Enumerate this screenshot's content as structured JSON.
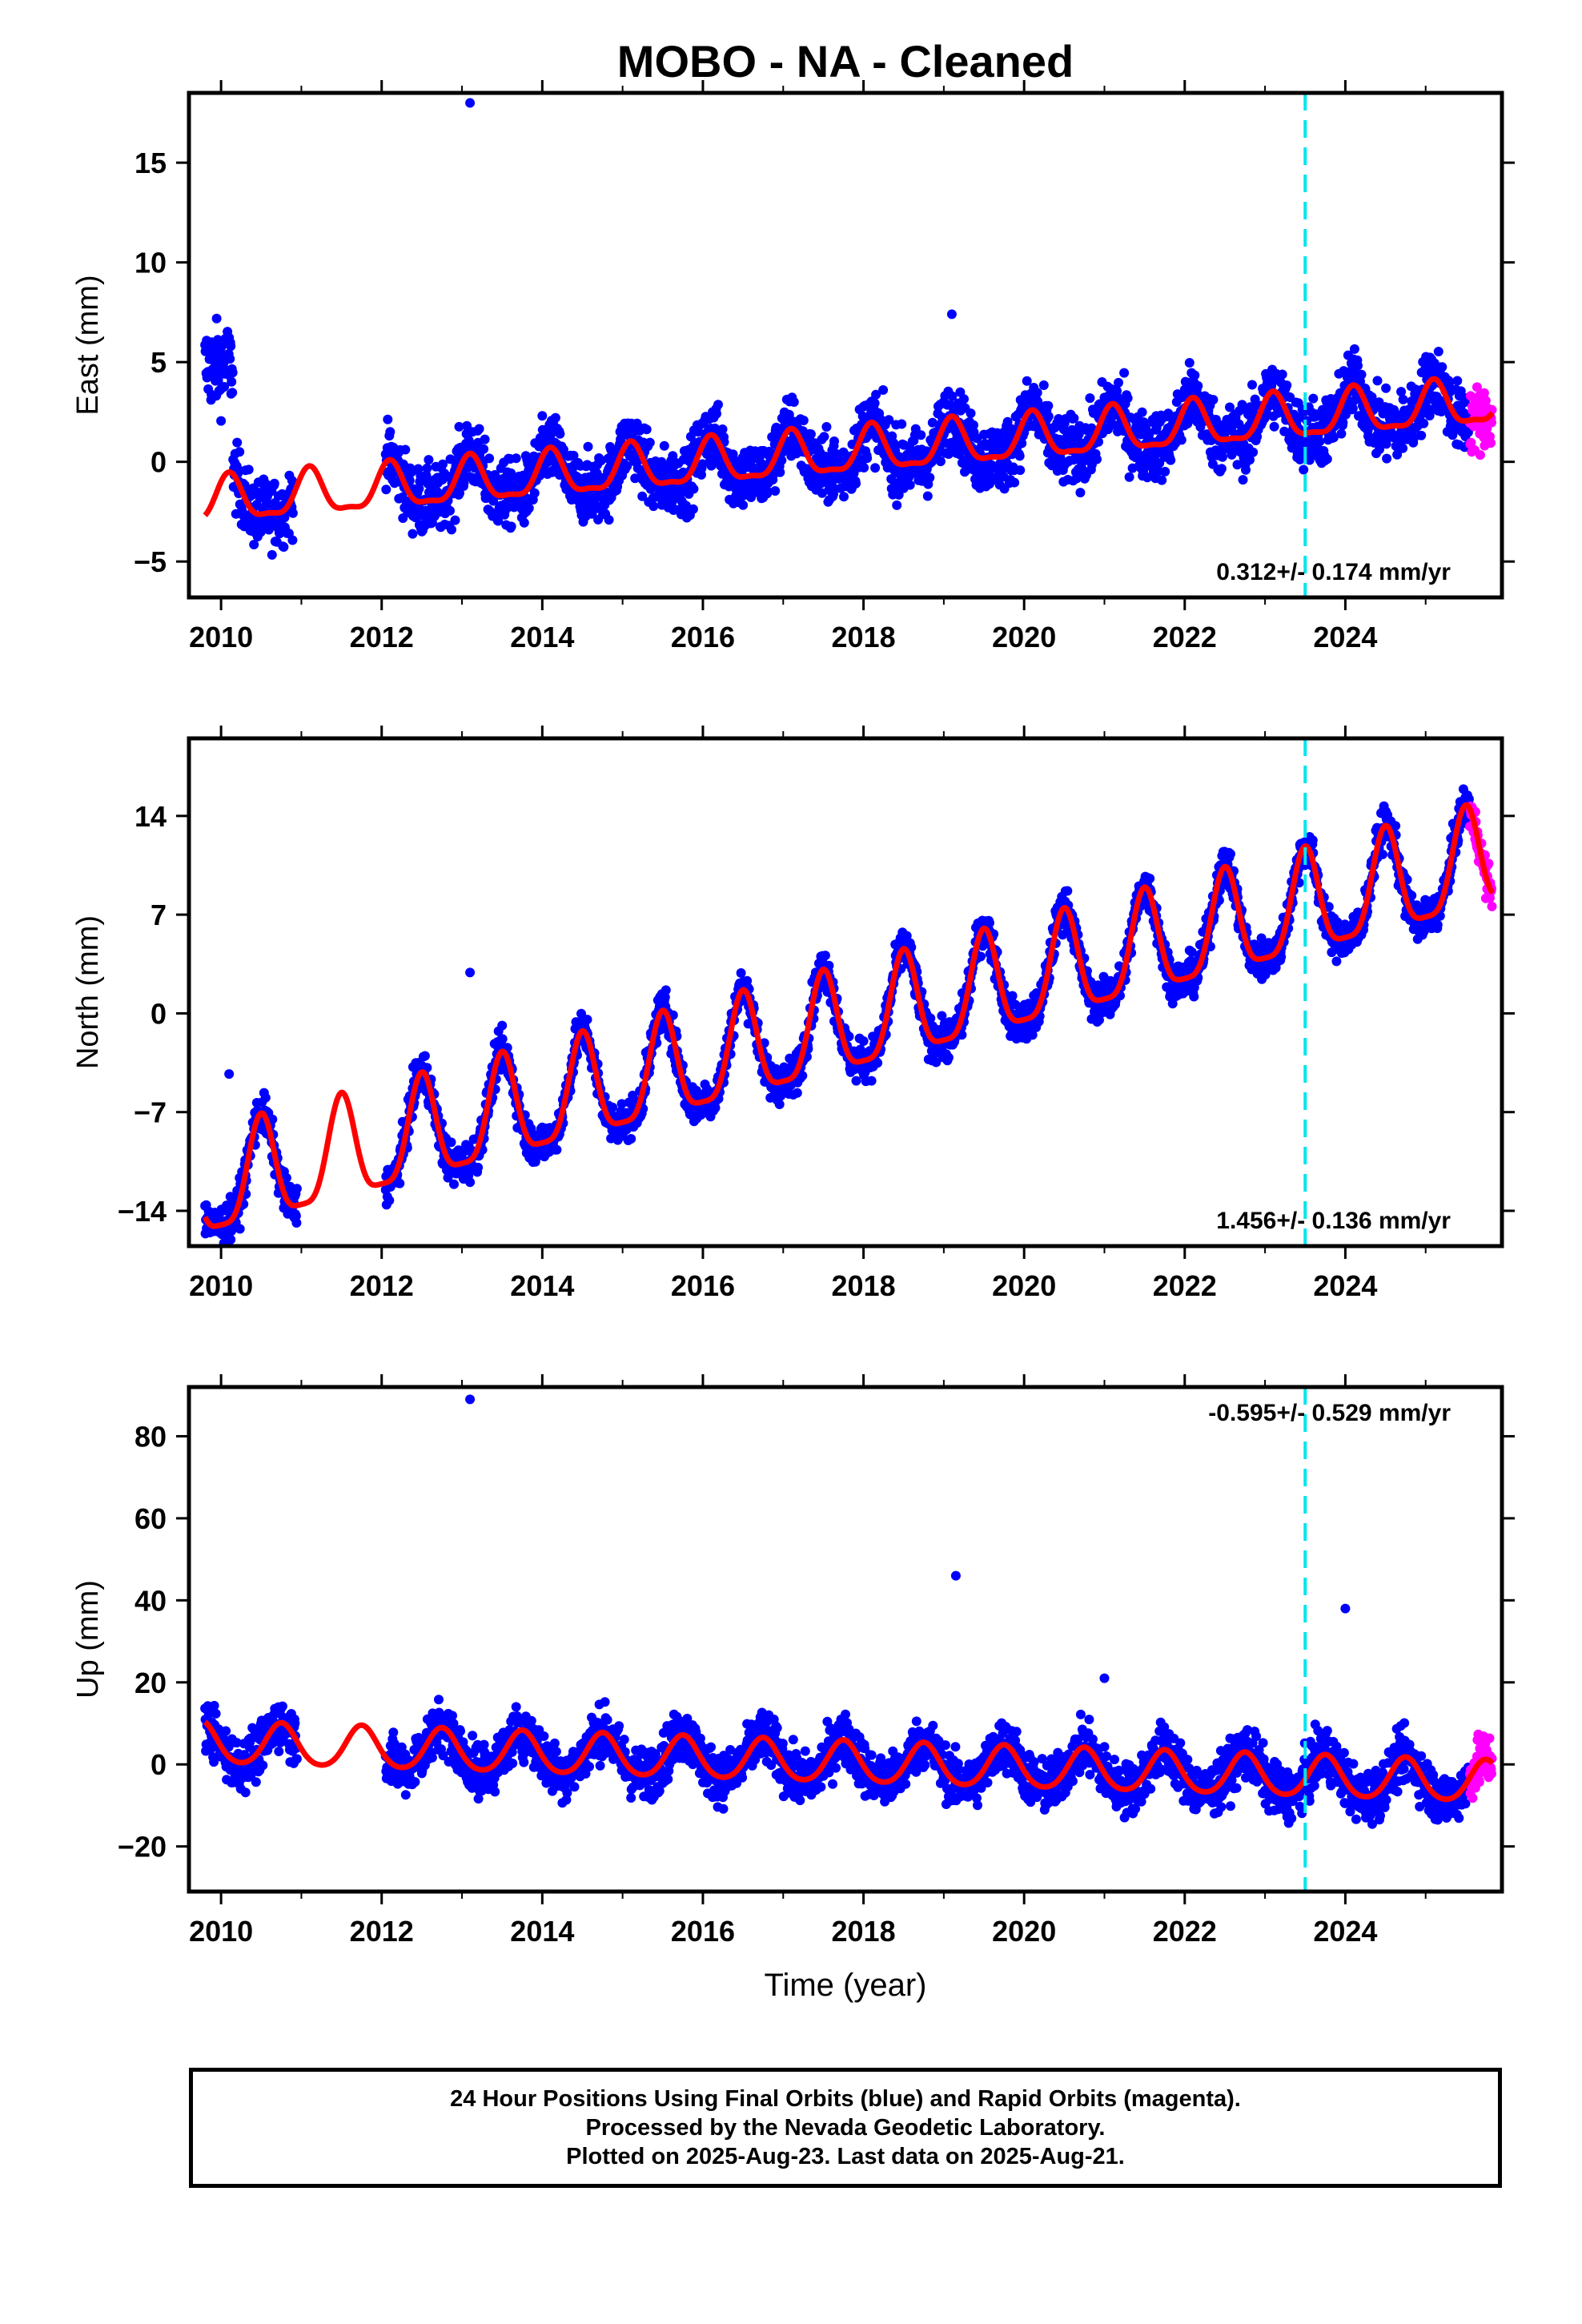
{
  "title": "MOBO  - NA - Cleaned",
  "footer": {
    "line1": "24 Hour Positions Using Final Orbits (blue) and Rapid Orbits (magenta).",
    "line2": "Processed by the Nevada Geodetic Laboratory.",
    "line3": "Plotted on 2025-Aug-23. Last data on 2025-Aug-21."
  },
  "colors": {
    "final": "#0000ff",
    "rapid": "#ff00ff",
    "model": "#ff0000",
    "event": "#00e5ee"
  },
  "chart_data": [
    {
      "type": "scatter",
      "ylabel": "East (mm)",
      "xlabel": "",
      "xlim": [
        2009.6,
        2025.95
      ],
      "ylim": [
        -6.8,
        18.5
      ],
      "xticks": [
        2010,
        2012,
        2014,
        2016,
        2018,
        2020,
        2022,
        2024
      ],
      "yticks": [
        -5,
        0,
        5,
        10,
        15
      ],
      "rate_label": "0.312+/- 0.174 mm/yr",
      "rate_position": "bottom-right",
      "event_line_x": 2023.5,
      "data_start": 2009.8,
      "gap": [
        2010.9,
        2012.05
      ],
      "rapid_start": 2025.55,
      "trend": {
        "at_2010": -2.0,
        "slope": 0.312,
        "annual_amp": 1.1,
        "annual_peak": 0.1,
        "semiannual_amp": 0.35
      },
      "noise": 1.2,
      "outliers": [
        {
          "x": 2013.1,
          "y": 18.0
        },
        {
          "x": 2019.1,
          "y": 7.4
        }
      ],
      "early_points": {
        "range": [
          2009.8,
          2010.15
        ],
        "center": 4.8,
        "spread": 1.5
      },
      "grid": false,
      "legend": "none"
    },
    {
      "type": "scatter",
      "ylabel": "North (mm)",
      "xlabel": "",
      "xlim": [
        2009.6,
        2025.95
      ],
      "ylim": [
        -16.5,
        19.5
      ],
      "xticks": [
        2010,
        2012,
        2014,
        2016,
        2018,
        2020,
        2022,
        2024
      ],
      "yticks": [
        -14,
        -7,
        0,
        7,
        14
      ],
      "rate_label": "1.456+/- 0.136 mm/yr",
      "rate_position": "bottom-right",
      "event_line_x": 2023.5,
      "data_start": 2009.8,
      "gap": [
        2010.95,
        2012.05
      ],
      "rapid_start": 2025.55,
      "trend": {
        "at_2010": -12.3,
        "slope": 1.456,
        "annual_amp": 3.6,
        "annual_peak": 0.5,
        "semiannual_amp": 0.9
      },
      "noise": 1.0,
      "outliers": [
        {
          "x": 2013.1,
          "y": 2.9
        },
        {
          "x": 2010.1,
          "y": -4.3
        }
      ],
      "early_points": null,
      "grid": false,
      "legend": "none"
    },
    {
      "type": "scatter",
      "ylabel": "Up (mm)",
      "xlabel": "Time (year)",
      "xlim": [
        2009.6,
        2025.95
      ],
      "ylim": [
        -31,
        92
      ],
      "xticks": [
        2010,
        2012,
        2014,
        2016,
        2018,
        2020,
        2022,
        2024
      ],
      "yticks": [
        -20,
        0,
        20,
        40,
        60,
        80
      ],
      "rate_label": "-0.595+/- 0.529 mm/yr",
      "rate_position": "top-right",
      "event_line_x": 2023.5,
      "data_start": 2009.8,
      "gap": [
        2010.95,
        2012.05
      ],
      "rapid_start": 2025.55,
      "trend": {
        "at_2010": 5.0,
        "slope": -0.595,
        "annual_amp": 5.0,
        "annual_peak": 0.75,
        "semiannual_amp": 0.6
      },
      "noise": 4.5,
      "outliers": [
        {
          "x": 2013.1,
          "y": 89
        },
        {
          "x": 2019.15,
          "y": 46
        },
        {
          "x": 2024.0,
          "y": 38
        },
        {
          "x": 2021.0,
          "y": 21
        }
      ],
      "early_points": null,
      "grid": false,
      "legend": "none"
    }
  ]
}
